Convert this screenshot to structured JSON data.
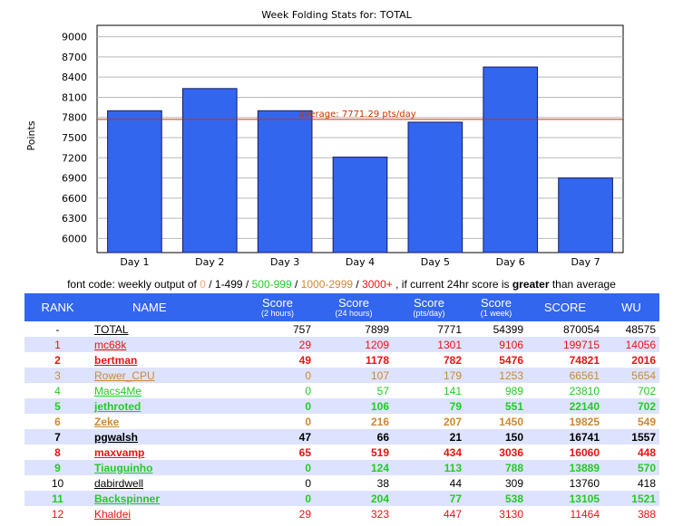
{
  "chart_data": {
    "type": "bar",
    "title": "Week Folding Stats for: TOTAL",
    "ylabel": "Points",
    "xlabel": "",
    "categories": [
      "Day 1",
      "Day 2",
      "Day 3",
      "Day 4",
      "Day 5",
      "Day 6",
      "Day 7"
    ],
    "values": [
      7900,
      8230,
      7900,
      7210,
      7730,
      8550,
      6900
    ],
    "yticks": [
      6000,
      6300,
      6600,
      6900,
      7200,
      7500,
      7800,
      8100,
      8400,
      8700,
      9000
    ],
    "ylim": [
      5790,
      9170
    ],
    "average": 7771.29,
    "average_label": "average: 7771.29 pts/day",
    "bar_color": "#3366ee",
    "average_color": "#cc3300",
    "grid": true
  },
  "legend": {
    "prefix": "font code: weekly output of ",
    "t0": "0",
    "sep": " / ",
    "t1": "1-499",
    "t2": "500-999",
    "t3": "1000-2999",
    "t4": "3000+",
    "mid": " , if current 24hr score is ",
    "strong": "greater",
    "suffix": " than average"
  },
  "table": {
    "headers": {
      "rank": "RANK",
      "name": "NAME",
      "s2h": "Score",
      "s2h_sub": "(2 hours)",
      "s24h": "Score",
      "s24h_sub": "(24 hours)",
      "spd": "Score",
      "spd_sub": "(pts/day)",
      "s1w": "Score",
      "s1w_sub": "(1 week)",
      "score": "SCORE",
      "wu": "WU"
    },
    "rows": [
      {
        "rank": "-",
        "name": "TOTAL",
        "s2h": "757",
        "s24h": "7899",
        "spd": "7771",
        "s1w": "54399",
        "score": "870054",
        "wu": "48575",
        "color": "#000000",
        "bold": false
      },
      {
        "rank": "1",
        "name": "mc68k",
        "s2h": "29",
        "s24h": "1209",
        "spd": "1301",
        "s1w": "9106",
        "score": "199715",
        "wu": "14056",
        "color": "#ee1111",
        "bold": false
      },
      {
        "rank": "2",
        "name": "bertman",
        "s2h": "49",
        "s24h": "1178",
        "spd": "782",
        "s1w": "5476",
        "score": "74821",
        "wu": "2016",
        "color": "#ee1111",
        "bold": true
      },
      {
        "rank": "3",
        "name": "Rower_CPU",
        "s2h": "0",
        "s24h": "107",
        "spd": "179",
        "s1w": "1253",
        "score": "66561",
        "wu": "5654",
        "color": "#cc8833",
        "bold": false
      },
      {
        "rank": "4",
        "name": "Macs4Me",
        "s2h": "0",
        "s24h": "57",
        "spd": "141",
        "s1w": "989",
        "score": "23810",
        "wu": "702",
        "color": "#22cc22",
        "bold": false
      },
      {
        "rank": "5",
        "name": "jethroted",
        "s2h": "0",
        "s24h": "106",
        "spd": "79",
        "s1w": "551",
        "score": "22140",
        "wu": "702",
        "color": "#22cc22",
        "bold": true
      },
      {
        "rank": "6",
        "name": "Zeke",
        "s2h": "0",
        "s24h": "216",
        "spd": "207",
        "s1w": "1450",
        "score": "19825",
        "wu": "549",
        "color": "#cc8833",
        "bold": true
      },
      {
        "rank": "7",
        "name": "pgwalsh",
        "s2h": "47",
        "s24h": "66",
        "spd": "21",
        "s1w": "150",
        "score": "16741",
        "wu": "1557",
        "color": "#000000",
        "bold": true
      },
      {
        "rank": "8",
        "name": "maxvamp",
        "s2h": "65",
        "s24h": "519",
        "spd": "434",
        "s1w": "3036",
        "score": "16060",
        "wu": "448",
        "color": "#ee1111",
        "bold": true
      },
      {
        "rank": "9",
        "name": "Tiauguinho",
        "s2h": "0",
        "s24h": "124",
        "spd": "113",
        "s1w": "788",
        "score": "13889",
        "wu": "570",
        "color": "#22cc22",
        "bold": true
      },
      {
        "rank": "10",
        "name": "dabirdwell",
        "s2h": "0",
        "s24h": "38",
        "spd": "44",
        "s1w": "309",
        "score": "13760",
        "wu": "418",
        "color": "#000000",
        "bold": false
      },
      {
        "rank": "11",
        "name": "Backspinner",
        "s2h": "0",
        "s24h": "204",
        "spd": "77",
        "s1w": "538",
        "score": "13105",
        "wu": "1521",
        "color": "#22cc22",
        "bold": true
      },
      {
        "rank": "12",
        "name": "Khaldei",
        "s2h": "29",
        "s24h": "323",
        "spd": "447",
        "s1w": "3130",
        "score": "11464",
        "wu": "388",
        "color": "#ee1111",
        "bold": false
      }
    ]
  }
}
